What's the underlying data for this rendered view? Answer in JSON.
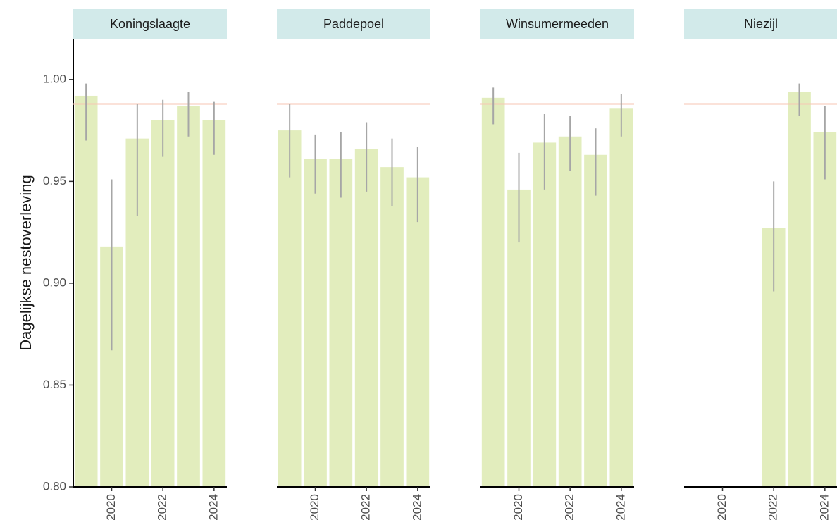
{
  "chart_data": {
    "type": "bar",
    "ylabel": "Dagelijkse nestoverleving",
    "xlabel": "",
    "ylim": [
      0.8,
      1.02
    ],
    "yticks": [
      0.8,
      0.85,
      0.9,
      0.95,
      1.0
    ],
    "ytick_labels": [
      "0.80",
      "0.85",
      "0.90",
      "0.95",
      "1.00"
    ],
    "xlim": [
      2018.5,
      2024.5
    ],
    "xticks": [
      2020,
      2022,
      2024
    ],
    "xtick_labels": [
      "2020",
      "2022",
      "2024"
    ],
    "reference_line": 0.988,
    "grid": false,
    "colors": {
      "bar": "#e2edbd",
      "errorbar": "#a6a6a6",
      "reference": "#f7c6b3",
      "strip": "#d2eaea",
      "axis": "#000000"
    },
    "panels": [
      {
        "name": "Koningslaagte",
        "bars": [
          {
            "year": 2019,
            "value": 0.992,
            "lower": 0.97,
            "upper": 0.998
          },
          {
            "year": 2020,
            "value": 0.918,
            "lower": 0.867,
            "upper": 0.951
          },
          {
            "year": 2021,
            "value": 0.971,
            "lower": 0.933,
            "upper": 0.988
          },
          {
            "year": 2022,
            "value": 0.98,
            "lower": 0.962,
            "upper": 0.99
          },
          {
            "year": 2023,
            "value": 0.987,
            "lower": 0.972,
            "upper": 0.994
          },
          {
            "year": 2024,
            "value": 0.98,
            "lower": 0.963,
            "upper": 0.989
          }
        ]
      },
      {
        "name": "Paddepoel",
        "bars": [
          {
            "year": 2019,
            "value": 0.975,
            "lower": 0.952,
            "upper": 0.988
          },
          {
            "year": 2020,
            "value": 0.961,
            "lower": 0.944,
            "upper": 0.973
          },
          {
            "year": 2021,
            "value": 0.961,
            "lower": 0.942,
            "upper": 0.974
          },
          {
            "year": 2022,
            "value": 0.966,
            "lower": 0.945,
            "upper": 0.979
          },
          {
            "year": 2023,
            "value": 0.957,
            "lower": 0.938,
            "upper": 0.971
          },
          {
            "year": 2024,
            "value": 0.952,
            "lower": 0.93,
            "upper": 0.967
          }
        ]
      },
      {
        "name": "Winsumermeeden",
        "bars": [
          {
            "year": 2019,
            "value": 0.991,
            "lower": 0.978,
            "upper": 0.996
          },
          {
            "year": 2020,
            "value": 0.946,
            "lower": 0.92,
            "upper": 0.964
          },
          {
            "year": 2021,
            "value": 0.969,
            "lower": 0.946,
            "upper": 0.983
          },
          {
            "year": 2022,
            "value": 0.972,
            "lower": 0.955,
            "upper": 0.982
          },
          {
            "year": 2023,
            "value": 0.963,
            "lower": 0.943,
            "upper": 0.976
          },
          {
            "year": 2024,
            "value": 0.986,
            "lower": 0.972,
            "upper": 0.993
          }
        ]
      },
      {
        "name": "Niezijl",
        "bars": [
          {
            "year": 2022,
            "value": 0.927,
            "lower": 0.896,
            "upper": 0.95
          },
          {
            "year": 2023,
            "value": 0.994,
            "lower": 0.982,
            "upper": 0.998
          },
          {
            "year": 2024,
            "value": 0.974,
            "lower": 0.951,
            "upper": 0.987
          }
        ]
      }
    ]
  }
}
